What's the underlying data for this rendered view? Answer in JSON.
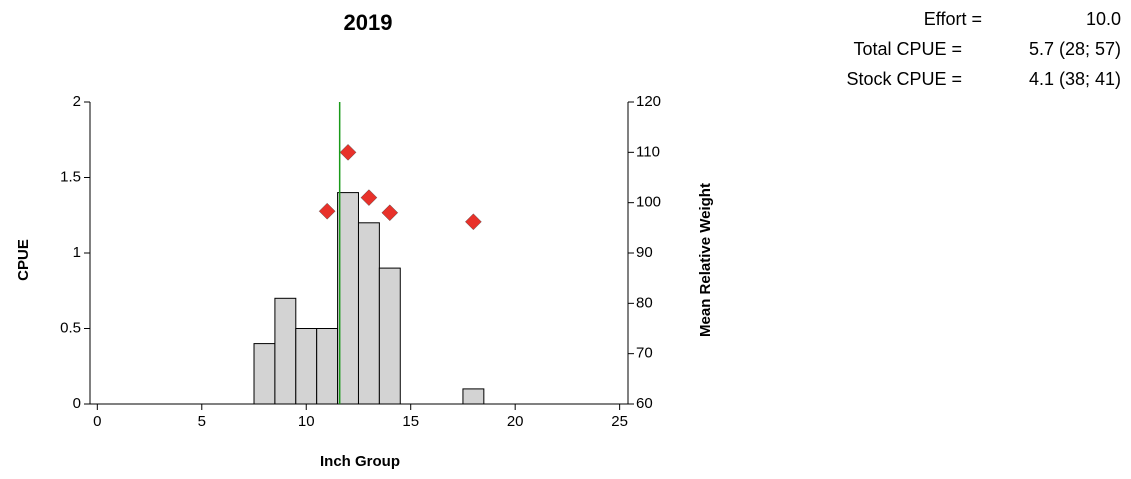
{
  "chart_data": {
    "type": "histogram",
    "title": "2019",
    "xlabel": "Inch Group",
    "ylabel": "CPUE",
    "y2label": "Mean Relative Weight",
    "bins": [
      7.5,
      8.5,
      9.5,
      10.5,
      11.5,
      12.5,
      13.5,
      14.5,
      15.5,
      16.5,
      17.5,
      18.5
    ],
    "values": [
      0.4,
      0.7,
      0.5,
      0.5,
      1.4,
      1.2,
      0.9,
      0,
      0,
      0,
      0.1
    ],
    "color": "#d3d3d3",
    "edgecolor": "#000000",
    "points": {
      "type": "scatter",
      "axis": "y2",
      "color": "#e8312a",
      "x": [
        11,
        12,
        13,
        14,
        18
      ],
      "values": [
        98.3,
        110,
        101,
        98,
        96.2
      ]
    },
    "vline": {
      "x": 11.6,
      "color": "#1a9a1a"
    },
    "xlim": [
      -0.35,
      25.4
    ],
    "xticks": [
      0,
      5,
      10,
      15,
      20,
      25
    ],
    "ylim": [
      0,
      2
    ],
    "yticks": [
      0,
      0.5,
      1,
      1.5,
      2
    ],
    "y2lim": [
      60,
      120
    ],
    "y2ticks": [
      60,
      70,
      80,
      90,
      100,
      110,
      120
    ]
  },
  "stats": [
    {
      "label": "Effort =",
      "value": "10.0"
    },
    {
      "label": "Total CPUE =",
      "value": "5.7 (28; 57)"
    },
    {
      "label": "Stock CPUE =",
      "value": "4.1 (38; 41)"
    }
  ]
}
